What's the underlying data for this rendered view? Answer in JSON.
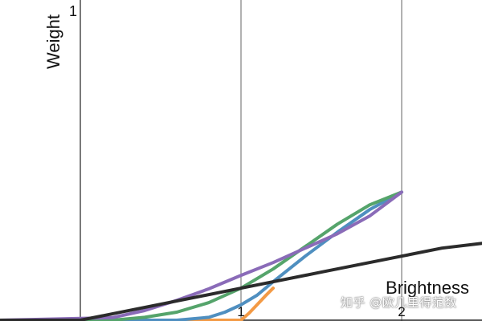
{
  "chart_data": {
    "type": "line",
    "title": "",
    "xlabel": "Brightness",
    "ylabel": "Weight",
    "xlim": [
      -0.5,
      2.5
    ],
    "ylim": [
      0,
      1
    ],
    "x_ticks": [
      "1",
      "2"
    ],
    "y_ticks": [
      "1"
    ],
    "vertical_gridlines": [
      0,
      1,
      2
    ],
    "grid": true,
    "legend": "none",
    "series": [
      {
        "color": "#f39a45",
        "points": [
          [
            -0.5,
            0
          ],
          [
            0.8,
            0
          ],
          [
            1.0,
            0
          ],
          [
            1.05,
            0.022
          ],
          [
            1.1,
            0.048
          ],
          [
            1.15,
            0.075
          ],
          [
            1.2,
            0.1
          ]
        ]
      },
      {
        "color": "#4f8fc0",
        "points": [
          [
            -0.5,
            0
          ],
          [
            0.6,
            0
          ],
          [
            0.8,
            0.009
          ],
          [
            0.9,
            0.025
          ],
          [
            1.0,
            0.048
          ],
          [
            1.1,
            0.078
          ],
          [
            1.2,
            0.12
          ],
          [
            1.4,
            0.2
          ],
          [
            1.6,
            0.275
          ],
          [
            1.8,
            0.345
          ],
          [
            2.0,
            0.4
          ]
        ]
      },
      {
        "color": "#55a46b",
        "points": [
          [
            -0.5,
            0
          ],
          [
            0.2,
            0
          ],
          [
            0.4,
            0.009
          ],
          [
            0.6,
            0.025
          ],
          [
            0.8,
            0.055
          ],
          [
            1.0,
            0.1
          ],
          [
            1.2,
            0.16
          ],
          [
            1.4,
            0.23
          ],
          [
            1.6,
            0.3
          ],
          [
            1.8,
            0.36
          ],
          [
            2.0,
            0.4
          ]
        ]
      },
      {
        "color": "#8a6bb8",
        "points": [
          [
            -0.5,
            0
          ],
          [
            0.2,
            0.008
          ],
          [
            0.4,
            0.03
          ],
          [
            0.6,
            0.062
          ],
          [
            0.8,
            0.098
          ],
          [
            1.0,
            0.14
          ],
          [
            1.2,
            0.18
          ],
          [
            1.4,
            0.225
          ],
          [
            1.6,
            0.27
          ],
          [
            1.8,
            0.325
          ],
          [
            2.0,
            0.4
          ]
        ]
      },
      {
        "color": "#2b2b2b",
        "points": [
          [
            -0.5,
            0
          ],
          [
            0,
            0
          ],
          [
            0.5,
            0.05
          ],
          [
            1.0,
            0.1
          ],
          [
            1.5,
            0.15
          ],
          [
            2.0,
            0.2
          ],
          [
            2.25,
            0.225
          ],
          [
            2.5,
            0.24
          ]
        ]
      }
    ]
  },
  "watermark": "知乎 @欧几里得范数"
}
